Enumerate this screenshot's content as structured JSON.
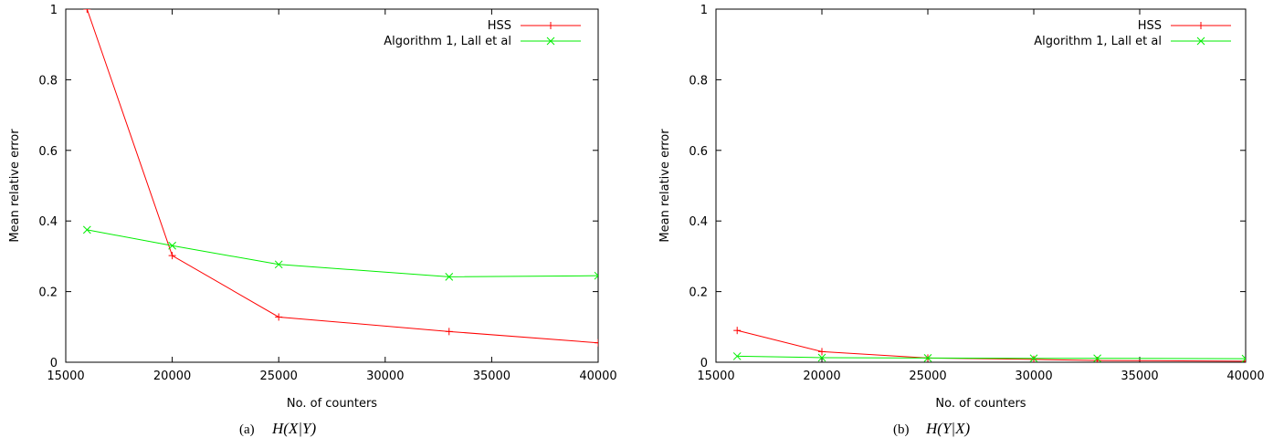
{
  "chart_data": [
    {
      "type": "line",
      "caption_prefix": "(a)",
      "caption_math": "H(X|Y)",
      "xlabel": "No. of counters",
      "ylabel": "Mean relative error",
      "xlim": [
        15000,
        40000
      ],
      "ylim": [
        0,
        1
      ],
      "xticks": [
        15000,
        20000,
        25000,
        30000,
        35000,
        40000
      ],
      "yticks": [
        0,
        0.2,
        0.4,
        0.6,
        0.8,
        1
      ],
      "ytick_labels": [
        "0",
        "0.2",
        "0.4",
        "0.6",
        "0.8",
        "1"
      ],
      "legend_position": "top-right",
      "grid": false,
      "series": [
        {
          "name": "HSS",
          "color": "#ff0000",
          "marker": "plus",
          "x": [
            15000,
            16000,
            20000,
            25000,
            33000,
            40000
          ],
          "y": [
            1.2,
            1.0,
            0.302,
            0.128,
            0.087,
            0.055
          ]
        },
        {
          "name": "Algorithm 1, Lall et al",
          "color": "#00ee00",
          "marker": "cross",
          "x": [
            16000,
            20000,
            25000,
            33000,
            40000
          ],
          "y": [
            0.375,
            0.33,
            0.277,
            0.242,
            0.245
          ]
        }
      ]
    },
    {
      "type": "line",
      "caption_prefix": "(b)",
      "caption_math": "H(Y|X)",
      "xlabel": "No. of counters",
      "ylabel": "Mean relative error",
      "xlim": [
        15000,
        40000
      ],
      "ylim": [
        0,
        1
      ],
      "xticks": [
        15000,
        20000,
        25000,
        30000,
        35000,
        40000
      ],
      "yticks": [
        0,
        0.2,
        0.4,
        0.6,
        0.8,
        1
      ],
      "ytick_labels": [
        "0",
        "0.2",
        "0.4",
        "0.6",
        "0.8",
        "1"
      ],
      "legend_position": "top-right",
      "grid": false,
      "series": [
        {
          "name": "HSS",
          "color": "#ff0000",
          "marker": "plus",
          "x": [
            16000,
            20000,
            25000,
            30000,
            33000,
            40000
          ],
          "y": [
            0.09,
            0.03,
            0.012,
            0.008,
            0.005,
            0.003
          ]
        },
        {
          "name": "Algorithm 1, Lall et al",
          "color": "#00ee00",
          "marker": "cross",
          "x": [
            16000,
            20000,
            25000,
            30000,
            33000,
            40000
          ],
          "y": [
            0.017,
            0.013,
            0.012,
            0.011,
            0.011,
            0.01
          ]
        }
      ]
    }
  ]
}
